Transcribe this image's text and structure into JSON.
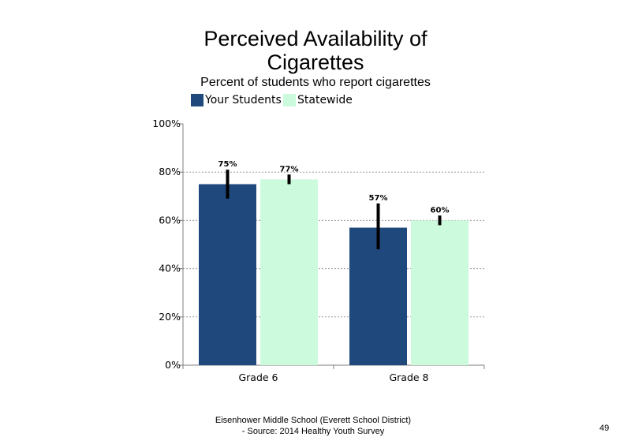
{
  "chart_data": {
    "type": "bar",
    "title_line1": "Perceived Availability of",
    "title_line2": "Cigarettes",
    "subtitle": "Percent of students who report cigarettes",
    "categories": [
      "Grade 6",
      "Grade 8"
    ],
    "series": [
      {
        "name": "Your Students",
        "color": "#1f497d",
        "values": [
          75,
          57
        ],
        "error_low": [
          69,
          48
        ],
        "error_high": [
          81,
          67
        ]
      },
      {
        "name": "Statewide",
        "color": "#ccfadc",
        "values": [
          77,
          60
        ],
        "error_low": [
          75,
          58
        ],
        "error_high": [
          79,
          62
        ]
      }
    ],
    "data_labels": [
      [
        "75%",
        "57%"
      ],
      [
        "77%",
        "60%"
      ]
    ],
    "ylim": [
      0,
      100
    ],
    "yticks": [
      0,
      20,
      40,
      60,
      80,
      100
    ],
    "ytick_labels": [
      "0%",
      "20%",
      "40%",
      "60%",
      "80%",
      "100%"
    ],
    "gridlines": "dotted",
    "legend_position": "top"
  },
  "footer": {
    "line1": "Eisenhower Middle School (Everett School District)",
    "line2": "- Source: 2014 Healthy  Youth Survey"
  },
  "page_number": "49"
}
